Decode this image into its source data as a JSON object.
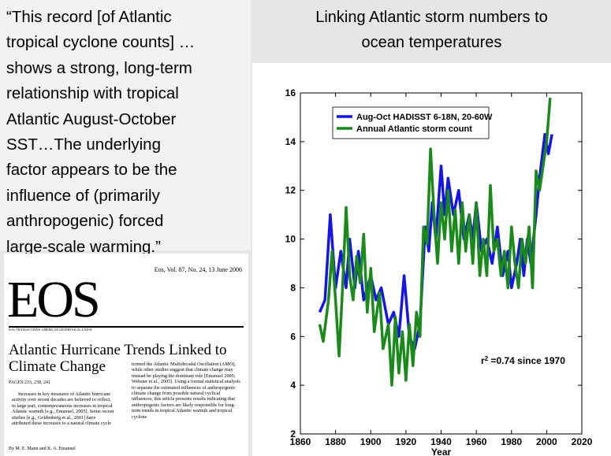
{
  "quote": {
    "lines": [
      "“This record [of Atlantic",
      "tropical cyclone counts] …",
      "shows a strong, long-term",
      "relationship with tropical",
      "Atlantic August-October",
      "SST…The underlying",
      "factor appears to be the",
      "influence of (primarily",
      "anthropogenic) forced",
      "large-scale warming.”"
    ]
  },
  "heading": {
    "lines": [
      "Linking Atlantic storm numbers to",
      "ocean temperatures"
    ]
  },
  "article": {
    "masthead": "Eos, Vol. 87, No. 24, 13 June 2006",
    "logo": "EOS",
    "logo_sub": "EOS, TRANSACTIONS, AMERICAN GEOPHYSICAL UNION",
    "headline": "Atlantic Hurricane Trends Linked to Climate Change",
    "pages": "PAGES 233, 238, 241",
    "col1": "Increases in key measures of Atlantic hurricane activity over recent decades are believed to reflect, in large part, contemporaneous increases in tropical Atlantic warmth [e.g., Emanuel, 2005]. Some recent studies [e.g., Goldenberg et al., 2001] have attributed these increases to a natural climate cycle",
    "byline": "By M. E. Mann and K. A. Emanuel",
    "col2": "termed the Atlantic Multidecadal Oscillation (AMO), while other studies suggest that climate change may instead be playing the dominant role [Emanuel 2005; Webster et al., 2005]. Using a formal statistical analysis to separate the estimated influences of anthropogenic climate change from possible natural cyclical influences, this article presents results indicating that anthropogenic factors are likely responsible for long-term trends in tropical Atlantic warmth and tropical cyclone"
  },
  "chart_data": {
    "type": "line",
    "xlabel": "Year",
    "xlim": [
      1860,
      2020
    ],
    "xticks": [
      1860,
      1880,
      1900,
      1920,
      1940,
      1960,
      1980,
      2000,
      2020
    ],
    "ylim": [
      2,
      16
    ],
    "yticks": [
      2,
      4,
      6,
      8,
      10,
      12,
      14,
      16
    ],
    "legend": "upper left",
    "annotation": {
      "base": "r",
      "sup": "2",
      "rest": " =0.74 since 1970"
    },
    "series": [
      {
        "name": "Aug-Oct HADISST 6-18N, 20-60W",
        "color": "#1515e6",
        "x": [
          1871,
          1874,
          1877,
          1880,
          1883,
          1886,
          1888,
          1891,
          1893,
          1896,
          1900,
          1903,
          1906,
          1910,
          1913,
          1916,
          1919,
          1922,
          1925,
          1928,
          1931,
          1933,
          1935,
          1937,
          1940,
          1942,
          1944,
          1947,
          1950,
          1953,
          1956,
          1958,
          1960,
          1963,
          1966,
          1969,
          1972,
          1975,
          1978,
          1980,
          1983,
          1985,
          1987,
          1989,
          1991,
          1994,
          1996,
          1999,
          2001,
          2003
        ],
        "values": [
          7,
          7.5,
          11,
          8,
          9.5,
          8,
          10,
          8,
          9.5,
          7.5,
          8.5,
          7.5,
          8,
          6.5,
          7,
          6,
          8.5,
          6,
          5.5,
          6.5,
          10.5,
          9.5,
          11.5,
          10,
          13,
          11,
          12.5,
          11,
          12,
          10,
          11,
          10,
          11.5,
          9.5,
          10,
          9,
          10.5,
          8.5,
          9.5,
          8,
          9,
          10,
          8.5,
          10,
          9,
          11,
          12.5,
          14.3,
          13.5,
          14.3
        ]
      },
      {
        "name": "Annual Atlantic storm count",
        "color": "#1a8a1a",
        "x": [
          1871,
          1873,
          1876,
          1878,
          1880,
          1882,
          1884,
          1886,
          1888,
          1890,
          1892,
          1894,
          1896,
          1898,
          1900,
          1902,
          1905,
          1907,
          1910,
          1912,
          1914,
          1916,
          1918,
          1920,
          1922,
          1924,
          1926,
          1928,
          1930,
          1932,
          1934,
          1936,
          1938,
          1940,
          1942,
          1944,
          1946,
          1948,
          1950,
          1952,
          1954,
          1956,
          1958,
          1960,
          1962,
          1964,
          1966,
          1968,
          1970,
          1972,
          1974,
          1976,
          1978,
          1980,
          1982,
          1984,
          1986,
          1988,
          1990,
          1992,
          1994,
          1996,
          1998,
          2000,
          2002
        ],
        "values": [
          6.5,
          5.8,
          7.5,
          9.5,
          7.5,
          5.2,
          8,
          11.3,
          8.5,
          7.5,
          9.3,
          8.2,
          10.2,
          7,
          8.8,
          6.2,
          7.8,
          5.5,
          6.5,
          4,
          6.8,
          4.5,
          6.2,
          4.2,
          6.5,
          4.8,
          7,
          6,
          10.5,
          9.8,
          13.7,
          11,
          9,
          11.5,
          10,
          12,
          9.5,
          11.2,
          9,
          11.5,
          9.5,
          11,
          9,
          11.5,
          8.5,
          10,
          8.5,
          12.2,
          9.5,
          10,
          8.5,
          9.5,
          8,
          10.5,
          9,
          8,
          10,
          9,
          10.5,
          8,
          12.8,
          12,
          13,
          14,
          15.8
        ]
      }
    ]
  }
}
